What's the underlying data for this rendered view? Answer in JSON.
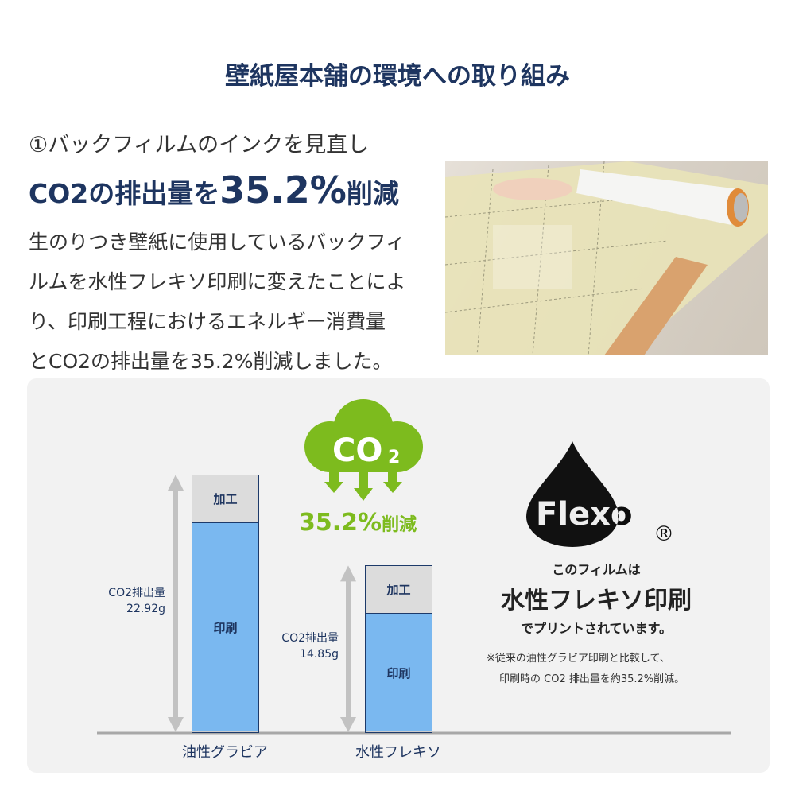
{
  "title": "壁紙屋本舗の環境への取り組み",
  "subheading": "①バックフィルムのインクを見直し",
  "headline": {
    "pre": "CO2の排出量を",
    "value": "35.2%",
    "post": "削減"
  },
  "body_lines": [
    "生のりつき壁紙に使用しているバックフィ",
    "ルムを水性フレキソ印刷に変えたことによ",
    "り、印刷工程におけるエネルギー消費量",
    "とCO2の排出量を35.2%削減しました。"
  ],
  "colors": {
    "navy": "#1e3560",
    "green": "#7dbb1e",
    "bar_blue": "#7ab8f0",
    "bar_gray": "#dcdcdc"
  },
  "cloud": {
    "label": "CO",
    "sub": "2",
    "reduction": "35.2%",
    "reduction_suffix": "削減"
  },
  "chart_data": {
    "type": "bar",
    "categories": [
      "油性グラビア",
      "水性フレキソ"
    ],
    "totals": [
      22.92,
      14.85
    ],
    "total_labels": [
      {
        "line1": "CO2排出量",
        "line2": "22.92g"
      },
      {
        "line1": "CO2排出量",
        "line2": "14.85g"
      }
    ],
    "segments": [
      "印刷",
      "加工"
    ]
  },
  "flexo": {
    "logo": "Flexo",
    "registered": "®",
    "line1": "このフィルムは",
    "line2": "水性フレキソ印刷",
    "line3": "でプリントされています。",
    "note1": "※従来の油性グラビア印刷と比較して、",
    "note2": "印刷時の CO2 排出量を約35.2%削減。"
  }
}
